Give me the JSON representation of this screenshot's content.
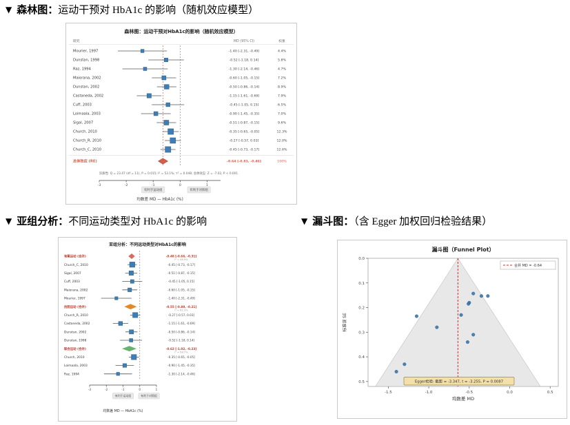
{
  "page": {
    "background": "#ffffff"
  },
  "sections": {
    "forest": {
      "marker": "▼",
      "label": "森林图：",
      "title_rest": "运动干预对 HbA1c 的影响（随机效应模型）"
    },
    "subgroup": {
      "marker": "▼",
      "label": "亚组分析：",
      "title_rest": "不同运动类型对 HbA1c 的影响"
    },
    "funnel": {
      "marker": "▼",
      "label": "漏斗图：",
      "title_rest": "（含 Egger 加权回归检验结果）"
    }
  },
  "chart_data": [
    {
      "id": "forest",
      "type": "forest",
      "title": "森林图：运动干预对HbA1c的影响（随机效应模型）",
      "columns": {
        "study": "研究",
        "md": "MD (95% CI)",
        "weight": "权重"
      },
      "xlabel": "均数差 MD — HbA1c (%)",
      "xlim": [
        -3,
        1.5
      ],
      "xticks": [
        -3,
        -2,
        -1,
        0,
        1
      ],
      "zero_line": 0,
      "pooled_line": -0.64,
      "studies": [
        {
          "label": "Mourier, 1997",
          "md": -1.4,
          "lo": -2.31,
          "hi": -0.49,
          "weight": 4.4,
          "ci_text": "-1.40 [-2.31, -0.49]",
          "weight_text": "4.4%"
        },
        {
          "label": "Dunstan, 1998",
          "md": -0.52,
          "lo": -1.18,
          "hi": 0.14,
          "weight": 5.8,
          "ci_text": "-0.52 [-1.18, 0.14]",
          "weight_text": "5.8%"
        },
        {
          "label": "Raz, 1994",
          "md": -1.3,
          "lo": -2.14,
          "hi": -0.46,
          "weight": 4.7,
          "ci_text": "-1.30 [-2.14, -0.46]",
          "weight_text": "4.7%"
        },
        {
          "label": "Maiorana, 2002",
          "md": -0.6,
          "lo": -1.05,
          "hi": -0.15,
          "weight": 7.2,
          "ci_text": "-0.60 [-1.05, -0.15]",
          "weight_text": "7.2%"
        },
        {
          "label": "Dunstan, 2002",
          "md": -0.5,
          "lo": -0.86,
          "hi": -0.14,
          "weight": 8.9,
          "ci_text": "-0.50 [-0.86, -0.14]",
          "weight_text": "8.9%"
        },
        {
          "label": "Castaneda, 2002",
          "md": -1.15,
          "lo": -1.61,
          "hi": -0.69,
          "weight": 7.9,
          "ci_text": "-1.15 [-1.61, -0.69]",
          "weight_text": "7.9%"
        },
        {
          "label": "Cuff, 2003",
          "md": -0.45,
          "lo": -1.05,
          "hi": 0.15,
          "weight": 6.5,
          "ci_text": "-0.45 [-1.05, 0.15]",
          "weight_text": "6.5%"
        },
        {
          "label": "Loimaala, 2003",
          "md": -0.9,
          "lo": -1.45,
          "hi": -0.35,
          "weight": 7.0,
          "ci_text": "-0.90 [-1.45, -0.35]",
          "weight_text": "7.0%"
        },
        {
          "label": "Sigal, 2007",
          "md": -0.51,
          "lo": -0.87,
          "hi": -0.15,
          "weight": 9.6,
          "ci_text": "-0.51 [-0.87, -0.15]",
          "weight_text": "9.6%"
        },
        {
          "label": "Church, 2010",
          "md": -0.35,
          "lo": -0.65,
          "hi": -0.05,
          "weight": 12.3,
          "ci_text": "-0.35 [-0.65, -0.05]",
          "weight_text": "12.3%"
        },
        {
          "label": "Church_R, 2010",
          "md": -0.27,
          "lo": -0.57,
          "hi": 0.03,
          "weight": 12.0,
          "ci_text": "-0.27 [-0.57, 0.03]",
          "weight_text": "12.0%"
        },
        {
          "label": "Church_C, 2010",
          "md": -0.45,
          "lo": -0.73,
          "hi": -0.17,
          "weight": 12.6,
          "ci_text": "-0.45 [-0.73, -0.17]",
          "weight_text": "12.6%"
        }
      ],
      "overall": {
        "label": "总体效应 (RE)",
        "md": -0.64,
        "lo": -0.81,
        "hi": -0.46,
        "ci_text": "-0.64 [-0.81, -0.46]",
        "weight_text": "100%"
      },
      "heterogeneity": "异质性: Q = 23.47 (df = 11), P = 0.015; I² = 53.1%; τ² = 0.048; 总体效应: Z = -7.02, P < 0.001",
      "footer_left": "有利于运动组",
      "footer_right": "有利于对照组",
      "colors": {
        "square": "#3d7fb5",
        "square_edge": "#2b5c85",
        "overall": "#d6604d",
        "overall_edge": "#b03a2e",
        "pooled_line": "#d6604d",
        "zero_line": "#888888",
        "group_label": "#c0392b"
      }
    },
    {
      "id": "subgroup",
      "type": "forest_grouped",
      "title": "亚组分析：不同运动类型对HbA1c的影响",
      "xlabel": "均数差 MD — HbA1c (%)",
      "xlim": [
        -3,
        1
      ],
      "xticks": [
        -3,
        -2,
        -1,
        0,
        1
      ],
      "zero_line": 0,
      "groups": [
        {
          "name": "有氧运动 (合并)",
          "color": "#d6604d",
          "pooled": {
            "md": -0.48,
            "lo": -0.66,
            "hi": -0.31,
            "ci_text": "-0.48 [-0.66, -0.31]",
            "het_text": "I² = 46.9%"
          },
          "studies": [
            {
              "label": "Church_C, 2010",
              "md": -0.45,
              "lo": -0.73,
              "hi": -0.17,
              "weight": 12.6,
              "ci_text": "-0.45 [-0.73, -0.17]"
            },
            {
              "label": "Sigal, 2007",
              "md": -0.51,
              "lo": -0.87,
              "hi": -0.15,
              "weight": 9.6,
              "ci_text": "-0.51 [-0.87, -0.15]"
            },
            {
              "label": "Cuff, 2003",
              "md": -0.45,
              "lo": -1.05,
              "hi": 0.15,
              "weight": 6.5,
              "ci_text": "-0.45 [-1.05, 0.15]"
            },
            {
              "label": "Maiorana, 2002",
              "md": -0.6,
              "lo": -1.05,
              "hi": -0.15,
              "weight": 7.2,
              "ci_text": "-0.60 [-1.05, -0.15]"
            },
            {
              "label": "Mourier, 1997",
              "md": -1.4,
              "lo": -2.31,
              "hi": -0.49,
              "weight": 4.4,
              "ci_text": "-1.40 [-2.31, -0.49]"
            }
          ]
        },
        {
          "name": "抗阻运动 (合并)",
          "color": "#e08214",
          "pooled": {
            "md": -0.55,
            "lo": -0.89,
            "hi": -0.21,
            "ci_text": "-0.55 [-0.89, -0.21]",
            "het_text": "I² = 62.3%"
          },
          "studies": [
            {
              "label": "Church_R, 2010",
              "md": -0.27,
              "lo": -0.57,
              "hi": 0.03,
              "weight": 12.0,
              "ci_text": "-0.27 [-0.57, 0.03]"
            },
            {
              "label": "Castaneda, 2002",
              "md": -1.15,
              "lo": -1.61,
              "hi": -0.69,
              "weight": 7.9,
              "ci_text": "-1.15 [-1.61, -0.69]"
            },
            {
              "label": "Dunstan, 2002",
              "md": -0.5,
              "lo": -0.86,
              "hi": -0.14,
              "weight": 8.9,
              "ci_text": "-0.50 [-0.86, -0.14]"
            },
            {
              "label": "Dunstan, 1998",
              "md": -0.52,
              "lo": -1.18,
              "hi": 0.14,
              "weight": 5.8,
              "ci_text": "-0.52 [-1.18, 0.14]"
            }
          ]
        },
        {
          "name": "联合运动 (合并)",
          "color": "#5aae61",
          "pooled": {
            "md": -0.62,
            "lo": -1.02,
            "hi": -0.23,
            "ci_text": "-0.62 [-1.02, -0.23]",
            "het_text": "I² = 58.7%"
          },
          "studies": [
            {
              "label": "Church, 2010",
              "md": -0.35,
              "lo": -0.65,
              "hi": -0.05,
              "weight": 12.3,
              "ci_text": "-0.35 [-0.65, -0.05]"
            },
            {
              "label": "Loimaala, 2003",
              "md": -0.9,
              "lo": -1.45,
              "hi": -0.35,
              "weight": 7.0,
              "ci_text": "-0.90 [-1.45, -0.35]"
            },
            {
              "label": "Raz, 1994",
              "md": -1.3,
              "lo": -2.14,
              "hi": -0.46,
              "weight": 4.7,
              "ci_text": "-1.30 [-2.14, -0.46]"
            }
          ]
        }
      ],
      "footer_left": "有利于运动组",
      "footer_right": "有利于对照组",
      "colors": {
        "square": "#3d7fb5",
        "square_edge": "#2b5c85",
        "zero_line": "#888888",
        "group_label": "#c0392b"
      }
    },
    {
      "id": "funnel",
      "type": "scatter",
      "title": "漏斗图（Funnel Plot）",
      "xlabel": "均数差 MD",
      "ylabel": "标准误 SE",
      "xlim": [
        -1.75,
        0.6
      ],
      "ylim": [
        0,
        0.52
      ],
      "xticks": [
        -1.5,
        -1.0,
        -0.5,
        0.0,
        0.5
      ],
      "yticks": [
        0.0,
        0.1,
        0.2,
        0.3,
        0.4,
        0.5
      ],
      "pooled_md": -0.64,
      "legend_label": "合并 MD = -0.64",
      "egger_text": "Egger检验: 截距 = -3.347, t = -3.255, P = 0.0087",
      "points": [
        {
          "md": -1.4,
          "se": 0.46
        },
        {
          "md": -0.52,
          "se": 0.34
        },
        {
          "md": -1.3,
          "se": 0.43
        },
        {
          "md": -0.6,
          "se": 0.23
        },
        {
          "md": -0.5,
          "se": 0.18
        },
        {
          "md": -1.15,
          "se": 0.235
        },
        {
          "md": -0.45,
          "se": 0.31
        },
        {
          "md": -0.9,
          "se": 0.28
        },
        {
          "md": -0.51,
          "se": 0.185
        },
        {
          "md": -0.35,
          "se": 0.153
        },
        {
          "md": -0.27,
          "se": 0.153
        },
        {
          "md": -0.45,
          "se": 0.143
        }
      ],
      "colors": {
        "point": "#3b77b0",
        "point_edge": "#27567f",
        "funnel_fill": "#e4e4e4",
        "funnel_edge": "#b5b5b5",
        "pooled_line": "#d62728",
        "egger_bg": "#f2dfa9",
        "egger_edge": "#9a8748"
      }
    }
  ]
}
